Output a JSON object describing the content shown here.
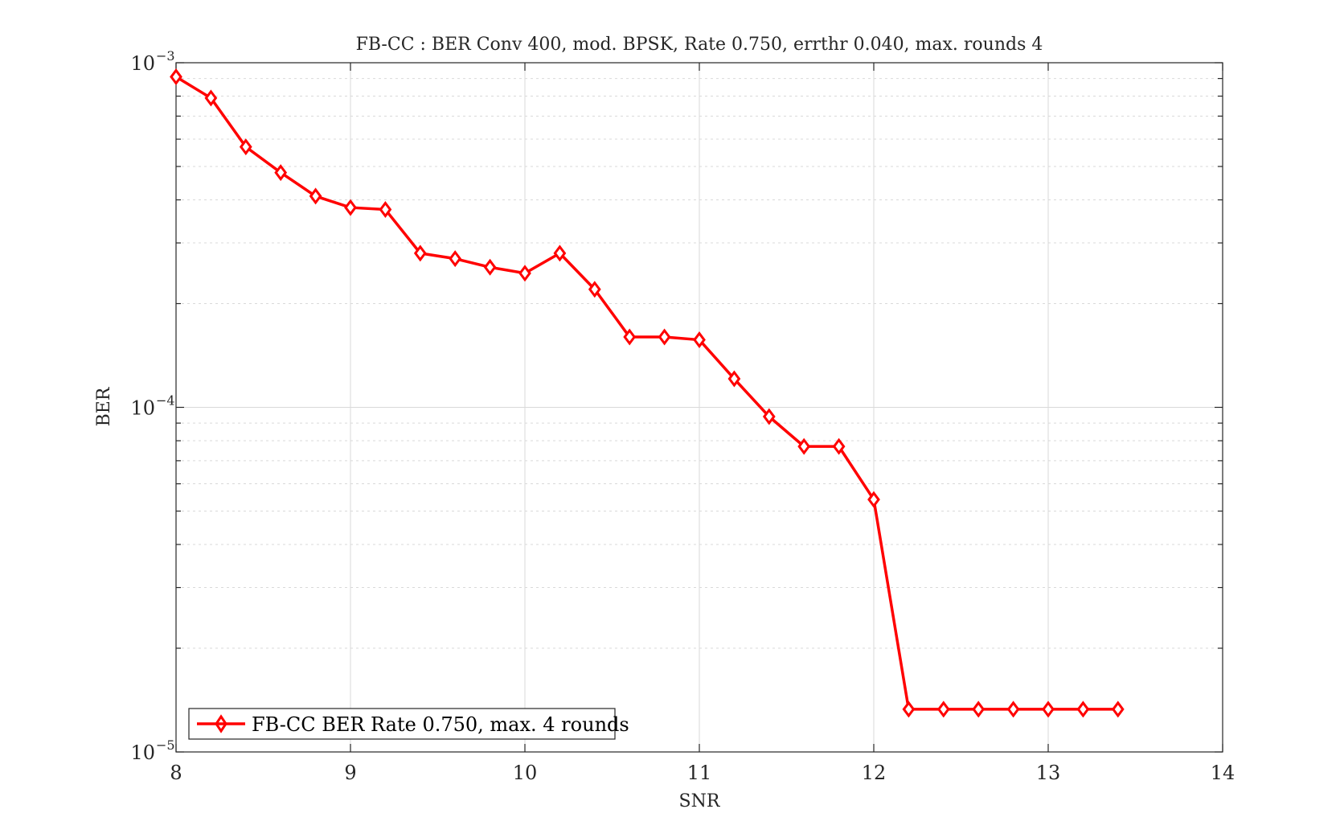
{
  "chart_data": {
    "type": "line",
    "title": "FB-CC : BER Conv 400, mod. BPSK, Rate 0.750, errthr 0.040, max. rounds 4",
    "xlabel": "SNR",
    "ylabel": "BER",
    "xlim": [
      8,
      14
    ],
    "ylim": [
      1e-05,
      0.001
    ],
    "yscale": "log",
    "grid": true,
    "legend_position": "bottom-left",
    "x_ticks": [
      {
        "value": 8,
        "label": "8"
      },
      {
        "value": 9,
        "label": "9"
      },
      {
        "value": 10,
        "label": "10"
      },
      {
        "value": 11,
        "label": "11"
      },
      {
        "value": 12,
        "label": "12"
      },
      {
        "value": 13,
        "label": "13"
      },
      {
        "value": 14,
        "label": "14"
      }
    ],
    "y_ticks": [
      {
        "value": 0.001,
        "base": "10",
        "exp": "−3"
      },
      {
        "value": 0.0001,
        "base": "10",
        "exp": "−4"
      },
      {
        "value": 1e-05,
        "base": "10",
        "exp": "−5"
      }
    ],
    "series": [
      {
        "name": "FB-CC BER Rate 0.750, max. 4 rounds",
        "color": "#ff0000",
        "marker": "diamond",
        "x": [
          8.0,
          8.2,
          8.4,
          8.6,
          8.8,
          9.0,
          9.2,
          9.4,
          9.6,
          9.8,
          10.0,
          10.2,
          10.4,
          10.6,
          10.8,
          11.0,
          11.2,
          11.4,
          11.6,
          11.8,
          12.0,
          12.2,
          12.4,
          12.6,
          12.8,
          13.0,
          13.2,
          13.4
        ],
        "y": [
          0.00091,
          0.00079,
          0.00057,
          0.00048,
          0.00041,
          0.00038,
          0.000375,
          0.00028,
          0.00027,
          0.000255,
          0.000245,
          0.00028,
          0.00022,
          0.00016,
          0.00016,
          0.000157,
          0.000121,
          9.4e-05,
          7.7e-05,
          7.7e-05,
          5.4e-05,
          1.33e-05,
          1.33e-05,
          1.33e-05,
          1.33e-05,
          1.33e-05,
          1.33e-05,
          1.33e-05
        ]
      }
    ]
  }
}
